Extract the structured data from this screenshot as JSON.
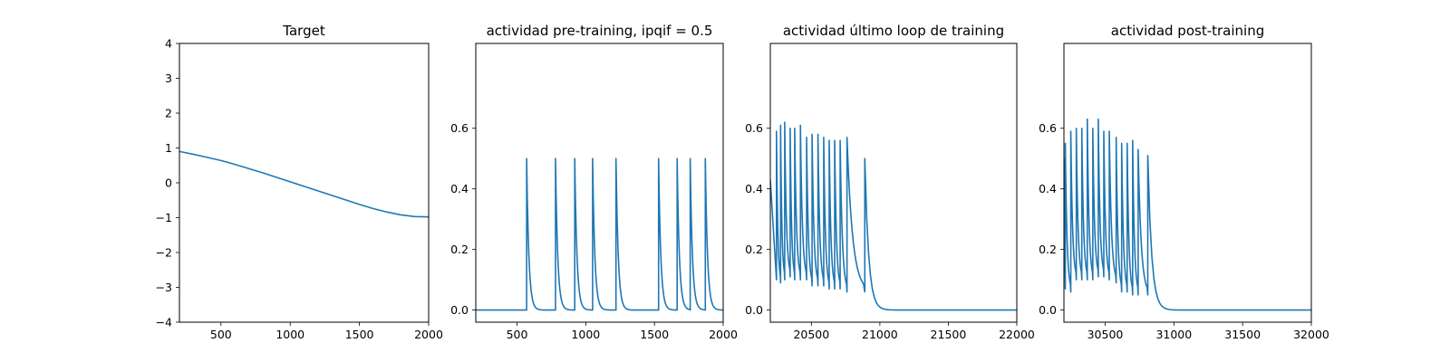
{
  "figure": {
    "background": "#ffffff",
    "line_color": "#1f77b4"
  },
  "chart_data": [
    {
      "type": "line",
      "title": "Target",
      "xlabel": "",
      "ylabel": "",
      "xlim": [
        200,
        2000
      ],
      "ylim": [
        -4,
        4
      ],
      "xticks": [
        500,
        1000,
        1500,
        2000
      ],
      "yticks": [
        -4,
        -3,
        -2,
        -1,
        0,
        1,
        2,
        3,
        4
      ],
      "grid": false,
      "series": [
        {
          "kind": "curve",
          "x": [
            200,
            300,
            400,
            500,
            600,
            700,
            800,
            900,
            1000,
            1100,
            1200,
            1300,
            1400,
            1500,
            1600,
            1700,
            1800,
            1900,
            2000
          ],
          "y": [
            0.9,
            0.82,
            0.73,
            0.64,
            0.53,
            0.41,
            0.29,
            0.16,
            0.03,
            -0.1,
            -0.23,
            -0.36,
            -0.49,
            -0.62,
            -0.74,
            -0.84,
            -0.92,
            -0.97,
            -0.98
          ]
        }
      ]
    },
    {
      "type": "line",
      "title": "actividad pre-training, ipqif = 0.5",
      "xlabel": "",
      "ylabel": "",
      "xlim": [
        200,
        2000
      ],
      "ylim": [
        -0.04,
        0.88
      ],
      "xticks": [
        500,
        1000,
        1500,
        2000
      ],
      "yticks": [
        0.0,
        0.2,
        0.4,
        0.6
      ],
      "ytick_labels": [
        "0.0",
        "0.2",
        "0.4",
        "0.6"
      ],
      "grid": false,
      "series": [
        {
          "kind": "spikes",
          "spike_times": [
            570,
            780,
            920,
            1050,
            1220,
            1530,
            1665,
            1760,
            1870
          ],
          "peaks": [
            0.5,
            0.5,
            0.5,
            0.5,
            0.5,
            0.5,
            0.5,
            0.5,
            0.5
          ],
          "baseline": 0.0,
          "tau": 16
        }
      ]
    },
    {
      "type": "line",
      "title": "actividad último loop de training",
      "xlabel": "",
      "ylabel": "",
      "xlim": [
        20200,
        22000
      ],
      "ylim": [
        -0.04,
        0.88
      ],
      "xticks": [
        20500,
        21000,
        21500,
        22000
      ],
      "yticks": [
        0.0,
        0.2,
        0.4,
        0.6
      ],
      "ytick_labels": [
        "0.0",
        "0.2",
        "0.4",
        "0.6"
      ],
      "grid": false,
      "series": [
        {
          "kind": "burst",
          "start_level": 0.43,
          "spike_times": [
            20245,
            20275,
            20305,
            20345,
            20378,
            20420,
            20465,
            20505,
            20548,
            20590,
            20630,
            20670,
            20710,
            20760,
            20890
          ],
          "peaks": [
            0.59,
            0.61,
            0.62,
            0.6,
            0.6,
            0.61,
            0.57,
            0.58,
            0.58,
            0.57,
            0.56,
            0.56,
            0.56,
            0.57,
            0.5
          ],
          "troughs": [
            0.09,
            0.1,
            0.11,
            0.1,
            0.1,
            0.1,
            0.08,
            0.08,
            0.08,
            0.07,
            0.07,
            0.07,
            0.06,
            0.06,
            0.0
          ],
          "baseline": 0.0,
          "tau": 28
        }
      ]
    },
    {
      "type": "line",
      "title": "actividad post-training",
      "xlabel": "",
      "ylabel": "",
      "xlim": [
        30200,
        32000
      ],
      "ylim": [
        -0.04,
        0.88
      ],
      "xticks": [
        30500,
        31000,
        31500,
        32000
      ],
      "yticks": [
        0.0,
        0.2,
        0.4,
        0.6
      ],
      "ytick_labels": [
        "0.0",
        "0.2",
        "0.4",
        "0.6"
      ],
      "grid": false,
      "series": [
        {
          "kind": "burst",
          "start_level": 0.5,
          "spike_times": [
            30210,
            30250,
            30290,
            30330,
            30370,
            30410,
            30450,
            30490,
            30530,
            30580,
            30620,
            30660,
            30700,
            30740,
            30810
          ],
          "peaks": [
            0.55,
            0.59,
            0.6,
            0.6,
            0.63,
            0.6,
            0.63,
            0.59,
            0.59,
            0.57,
            0.55,
            0.55,
            0.56,
            0.53,
            0.51
          ],
          "troughs": [
            0.06,
            0.1,
            0.1,
            0.1,
            0.1,
            0.11,
            0.11,
            0.1,
            0.09,
            0.06,
            0.06,
            0.05,
            0.05,
            0.05,
            0.0
          ],
          "baseline": 0.0,
          "tau": 28
        }
      ]
    }
  ]
}
